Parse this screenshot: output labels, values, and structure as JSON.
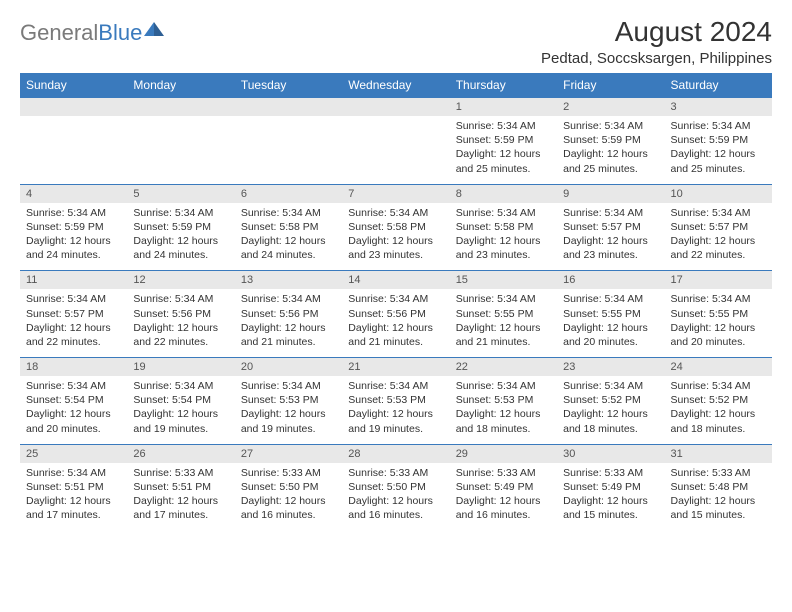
{
  "logo": {
    "text1": "General",
    "text2": "Blue"
  },
  "title": "August 2024",
  "location": "Pedtad, Soccsksargen, Philippines",
  "colors": {
    "header_bg": "#3a7abd",
    "header_text": "#ffffff",
    "daynum_bg": "#e8e8e8",
    "border": "#3a7abd"
  },
  "weekdays": [
    "Sunday",
    "Monday",
    "Tuesday",
    "Wednesday",
    "Thursday",
    "Friday",
    "Saturday"
  ],
  "weeks": [
    [
      null,
      null,
      null,
      null,
      {
        "n": "1",
        "sr": "5:34 AM",
        "ss": "5:59 PM",
        "dl": "12 hours and 25 minutes."
      },
      {
        "n": "2",
        "sr": "5:34 AM",
        "ss": "5:59 PM",
        "dl": "12 hours and 25 minutes."
      },
      {
        "n": "3",
        "sr": "5:34 AM",
        "ss": "5:59 PM",
        "dl": "12 hours and 25 minutes."
      }
    ],
    [
      {
        "n": "4",
        "sr": "5:34 AM",
        "ss": "5:59 PM",
        "dl": "12 hours and 24 minutes."
      },
      {
        "n": "5",
        "sr": "5:34 AM",
        "ss": "5:59 PM",
        "dl": "12 hours and 24 minutes."
      },
      {
        "n": "6",
        "sr": "5:34 AM",
        "ss": "5:58 PM",
        "dl": "12 hours and 24 minutes."
      },
      {
        "n": "7",
        "sr": "5:34 AM",
        "ss": "5:58 PM",
        "dl": "12 hours and 23 minutes."
      },
      {
        "n": "8",
        "sr": "5:34 AM",
        "ss": "5:58 PM",
        "dl": "12 hours and 23 minutes."
      },
      {
        "n": "9",
        "sr": "5:34 AM",
        "ss": "5:57 PM",
        "dl": "12 hours and 23 minutes."
      },
      {
        "n": "10",
        "sr": "5:34 AM",
        "ss": "5:57 PM",
        "dl": "12 hours and 22 minutes."
      }
    ],
    [
      {
        "n": "11",
        "sr": "5:34 AM",
        "ss": "5:57 PM",
        "dl": "12 hours and 22 minutes."
      },
      {
        "n": "12",
        "sr": "5:34 AM",
        "ss": "5:56 PM",
        "dl": "12 hours and 22 minutes."
      },
      {
        "n": "13",
        "sr": "5:34 AM",
        "ss": "5:56 PM",
        "dl": "12 hours and 21 minutes."
      },
      {
        "n": "14",
        "sr": "5:34 AM",
        "ss": "5:56 PM",
        "dl": "12 hours and 21 minutes."
      },
      {
        "n": "15",
        "sr": "5:34 AM",
        "ss": "5:55 PM",
        "dl": "12 hours and 21 minutes."
      },
      {
        "n": "16",
        "sr": "5:34 AM",
        "ss": "5:55 PM",
        "dl": "12 hours and 20 minutes."
      },
      {
        "n": "17",
        "sr": "5:34 AM",
        "ss": "5:55 PM",
        "dl": "12 hours and 20 minutes."
      }
    ],
    [
      {
        "n": "18",
        "sr": "5:34 AM",
        "ss": "5:54 PM",
        "dl": "12 hours and 20 minutes."
      },
      {
        "n": "19",
        "sr": "5:34 AM",
        "ss": "5:54 PM",
        "dl": "12 hours and 19 minutes."
      },
      {
        "n": "20",
        "sr": "5:34 AM",
        "ss": "5:53 PM",
        "dl": "12 hours and 19 minutes."
      },
      {
        "n": "21",
        "sr": "5:34 AM",
        "ss": "5:53 PM",
        "dl": "12 hours and 19 minutes."
      },
      {
        "n": "22",
        "sr": "5:34 AM",
        "ss": "5:53 PM",
        "dl": "12 hours and 18 minutes."
      },
      {
        "n": "23",
        "sr": "5:34 AM",
        "ss": "5:52 PM",
        "dl": "12 hours and 18 minutes."
      },
      {
        "n": "24",
        "sr": "5:34 AM",
        "ss": "5:52 PM",
        "dl": "12 hours and 18 minutes."
      }
    ],
    [
      {
        "n": "25",
        "sr": "5:34 AM",
        "ss": "5:51 PM",
        "dl": "12 hours and 17 minutes."
      },
      {
        "n": "26",
        "sr": "5:33 AM",
        "ss": "5:51 PM",
        "dl": "12 hours and 17 minutes."
      },
      {
        "n": "27",
        "sr": "5:33 AM",
        "ss": "5:50 PM",
        "dl": "12 hours and 16 minutes."
      },
      {
        "n": "28",
        "sr": "5:33 AM",
        "ss": "5:50 PM",
        "dl": "12 hours and 16 minutes."
      },
      {
        "n": "29",
        "sr": "5:33 AM",
        "ss": "5:49 PM",
        "dl": "12 hours and 16 minutes."
      },
      {
        "n": "30",
        "sr": "5:33 AM",
        "ss": "5:49 PM",
        "dl": "12 hours and 15 minutes."
      },
      {
        "n": "31",
        "sr": "5:33 AM",
        "ss": "5:48 PM",
        "dl": "12 hours and 15 minutes."
      }
    ]
  ],
  "labels": {
    "sunrise": "Sunrise: ",
    "sunset": "Sunset: ",
    "daylight": "Daylight: "
  }
}
